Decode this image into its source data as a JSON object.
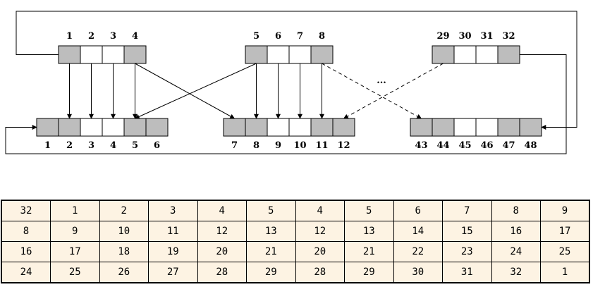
{
  "colors": {
    "shaded_cell": "#bdbdbd",
    "plain_cell": "#ffffff",
    "table_background": "#fdf3e3",
    "stroke": "#000000"
  },
  "top_blocks": [
    {
      "labels": [
        "1",
        "2",
        "3",
        "4"
      ],
      "shaded": [
        true,
        false,
        false,
        true
      ]
    },
    {
      "labels": [
        "5",
        "6",
        "7",
        "8"
      ],
      "shaded": [
        true,
        false,
        false,
        true
      ]
    },
    {
      "labels": [
        "29",
        "30",
        "31",
        "32"
      ],
      "shaded": [
        true,
        false,
        false,
        true
      ]
    }
  ],
  "ellipsis": "...",
  "bottom_blocks": [
    {
      "labels": [
        "1",
        "2",
        "3",
        "4",
        "5",
        "6"
      ],
      "shaded": [
        true,
        true,
        false,
        false,
        true,
        true
      ]
    },
    {
      "labels": [
        "7",
        "8",
        "9",
        "10",
        "11",
        "12"
      ],
      "shaded": [
        true,
        true,
        false,
        false,
        true,
        true
      ]
    },
    {
      "labels": [
        "43",
        "44",
        "45",
        "46",
        "47",
        "48"
      ],
      "shaded": [
        true,
        true,
        false,
        false,
        true,
        true
      ]
    }
  ],
  "table_rows": [
    [
      "32",
      "1",
      "2",
      "3",
      "4",
      "5",
      "4",
      "5",
      "6",
      "7",
      "8",
      "9"
    ],
    [
      "8",
      "9",
      "10",
      "11",
      "12",
      "13",
      "12",
      "13",
      "14",
      "15",
      "16",
      "17"
    ],
    [
      "16",
      "17",
      "18",
      "19",
      "20",
      "21",
      "20",
      "21",
      "22",
      "23",
      "24",
      "25"
    ],
    [
      "24",
      "25",
      "26",
      "27",
      "28",
      "29",
      "28",
      "29",
      "30",
      "31",
      "32",
      "1"
    ]
  ]
}
